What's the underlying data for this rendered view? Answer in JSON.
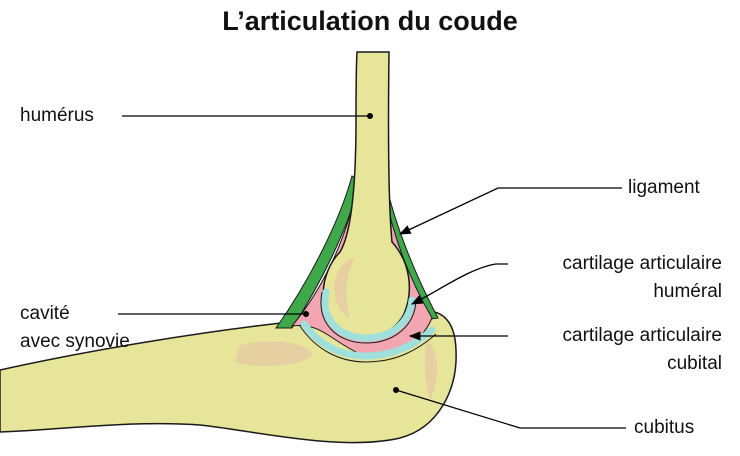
{
  "title": "L’articulation du coude",
  "labels": {
    "humerus": "humérus",
    "ligament": "ligament",
    "cartilage_humeral_1": "cartilage articulaire",
    "cartilage_humeral_2": "huméral",
    "cavite_1": "cavité",
    "cavite_2": "avec synovie",
    "cartilage_cubital_1": "cartilage articulaire",
    "cartilage_cubital_2": "cubital",
    "cubitus": "cubitus"
  },
  "colors": {
    "bone": "#e6e59a",
    "bone_shade": "#e6cfa0",
    "ligament": "#3fa84a",
    "synovial_cavity": "#f2a6b2",
    "cartilage": "#9fe0dd",
    "outline": "#1a1a1a",
    "line": "#000000"
  }
}
